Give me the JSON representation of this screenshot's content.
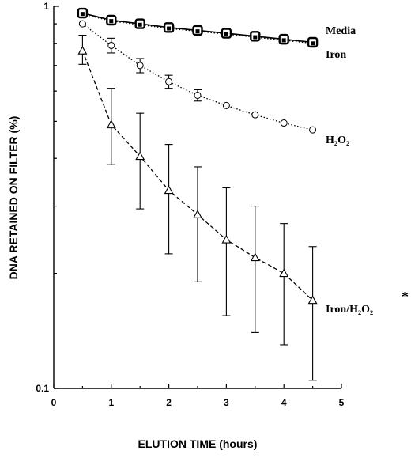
{
  "chart_data": {
    "type": "line",
    "xlabel": "ELUTION TIME  (hours)",
    "ylabel": "DNA RETAINED ON FILTER (%)",
    "xlim": [
      0,
      5
    ],
    "ylim": [
      0.1,
      1
    ],
    "yscale": "log",
    "xticks": [
      "0",
      "1",
      "2",
      "3",
      "4",
      "5"
    ],
    "yticks": [
      {
        "value": 1,
        "label": "1"
      },
      {
        "value": 0.1,
        "label": "0.1"
      }
    ],
    "grid": false,
    "legend": "none",
    "series": [
      {
        "name": "Media",
        "marker": "square",
        "line": "solid",
        "x": [
          0.5,
          1,
          1.5,
          2,
          2.5,
          3,
          3.5,
          4,
          4.5
        ],
        "y": [
          0.96,
          0.92,
          0.9,
          0.88,
          0.865,
          0.85,
          0.835,
          0.82,
          0.805
        ]
      },
      {
        "name": "Iron",
        "marker": "square",
        "line": "dotted",
        "x": [
          0.5,
          1,
          1.5,
          2,
          2.5,
          3,
          3.5,
          4,
          4.5
        ],
        "y": [
          0.955,
          0.915,
          0.895,
          0.875,
          0.86,
          0.845,
          0.83,
          0.815,
          0.8
        ]
      },
      {
        "name": "H₂O₂",
        "marker": "circle",
        "line": "dotted",
        "x": [
          0.5,
          1,
          1.5,
          2,
          2.5,
          3,
          3.5,
          4,
          4.5
        ],
        "y": [
          0.9,
          0.79,
          0.7,
          0.635,
          0.585,
          0.55,
          0.52,
          0.495,
          0.475
        ],
        "err": [
          0.0,
          0.035,
          0.03,
          0.025,
          0.02,
          0.0,
          0.0,
          0.0,
          0.0
        ]
      },
      {
        "name": "Iron/H₂O₂",
        "marker": "triangle",
        "line": "dashed",
        "x": [
          0.5,
          1,
          1.5,
          2,
          2.5,
          3,
          3.5,
          4,
          4.5
        ],
        "y": [
          0.765,
          0.49,
          0.405,
          0.33,
          0.285,
          0.245,
          0.22,
          0.2,
          0.17
        ],
        "err_up": [
          0.075,
          0.12,
          0.12,
          0.105,
          0.095,
          0.09,
          0.08,
          0.07,
          0.065
        ],
        "err_down": [
          0.06,
          0.105,
          0.11,
          0.105,
          0.095,
          0.09,
          0.08,
          0.07,
          0.065
        ]
      }
    ],
    "annotations": [
      "*"
    ]
  }
}
